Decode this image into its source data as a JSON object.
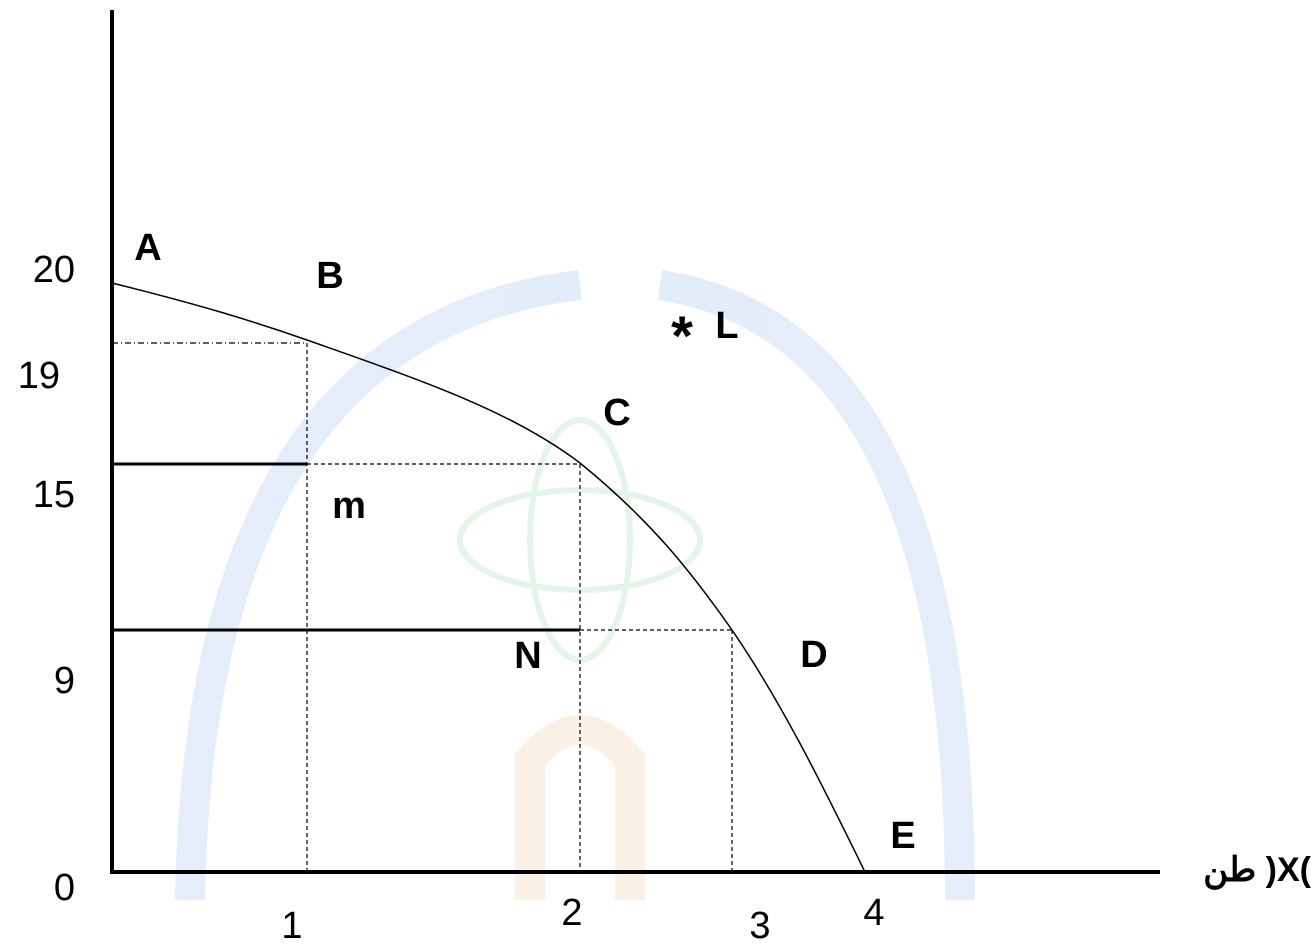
{
  "y_tick_labels": [
    "20",
    "19",
    "15",
    "9",
    "0"
  ],
  "x_tick_labels": [
    "1",
    "2",
    "3",
    "4"
  ],
  "x_axis_label": "طن )X(",
  "curve_points": [
    "A",
    "B",
    "C",
    "D",
    "E"
  ],
  "other_labels": {
    "star": "*",
    "L": "L",
    "m": "m",
    "N": "N"
  }
}
